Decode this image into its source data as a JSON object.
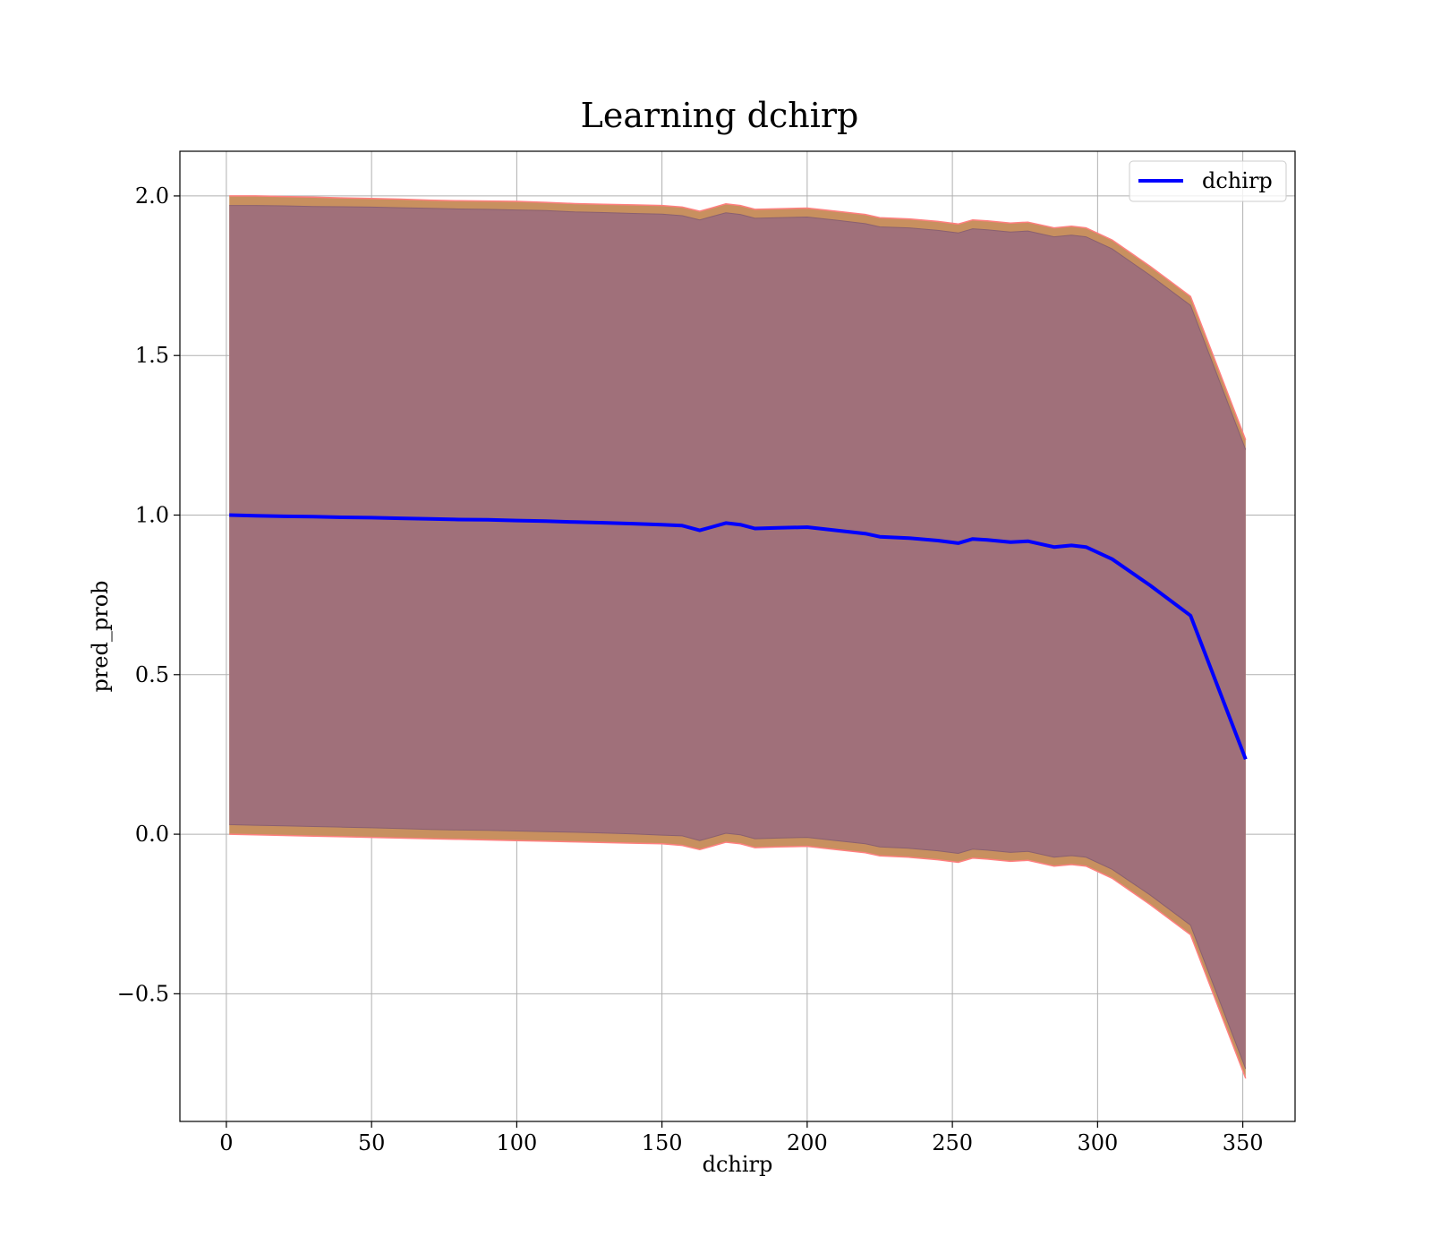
{
  "chart_data": {
    "type": "line",
    "title": "Learning dchirp",
    "xlabel": "dchirp",
    "ylabel": "pred_prob",
    "xlim": [
      -16,
      368
    ],
    "ylim": [
      -0.9,
      2.14
    ],
    "xticks": [
      0,
      50,
      100,
      150,
      200,
      250,
      300,
      350
    ],
    "yticks": [
      -0.5,
      0.0,
      0.5,
      1.0,
      1.5,
      2.0
    ],
    "grid": true,
    "legend_position": "top-right",
    "series": [
      {
        "name": "dchirp",
        "color": "#0000ff",
        "x": [
          1,
          10,
          20,
          30,
          40,
          50,
          60,
          70,
          80,
          90,
          100,
          110,
          120,
          130,
          140,
          150,
          157,
          163,
          167,
          172,
          177,
          182,
          190,
          200,
          210,
          220,
          225,
          235,
          245,
          252,
          257,
          262,
          270,
          276,
          285,
          291,
          296,
          305,
          318,
          332,
          351
        ],
        "y": [
          1.0,
          0.998,
          0.996,
          0.995,
          0.993,
          0.992,
          0.99,
          0.988,
          0.986,
          0.985,
          0.983,
          0.981,
          0.978,
          0.976,
          0.973,
          0.97,
          0.967,
          0.952,
          0.962,
          0.975,
          0.97,
          0.958,
          0.96,
          0.962,
          0.952,
          0.942,
          0.932,
          0.928,
          0.92,
          0.912,
          0.925,
          0.922,
          0.915,
          0.918,
          0.9,
          0.905,
          0.9,
          0.862,
          0.78,
          0.685,
          0.235
        ]
      }
    ],
    "band": {
      "outer_color": "#c8905f",
      "inner_color": "#a0707a",
      "edge_color": "#ff7f7f",
      "upper_outer": [
        2.0,
        2.0,
        1.998,
        1.996,
        1.994,
        1.992,
        1.99,
        1.987,
        1.985,
        1.984,
        1.983,
        1.98,
        1.976,
        1.974,
        1.972,
        1.97,
        1.965,
        1.952,
        1.962,
        1.975,
        1.97,
        1.958,
        1.96,
        1.962,
        1.952,
        1.942,
        1.932,
        1.928,
        1.92,
        1.912,
        1.925,
        1.922,
        1.915,
        1.918,
        1.9,
        1.905,
        1.9,
        1.862,
        1.78,
        1.685,
        1.235
      ],
      "upper_inner": [
        1.97,
        1.97,
        1.969,
        1.967,
        1.966,
        1.965,
        1.963,
        1.961,
        1.959,
        1.958,
        1.956,
        1.954,
        1.95,
        1.948,
        1.945,
        1.943,
        1.938,
        1.925,
        1.935,
        1.947,
        1.942,
        1.93,
        1.932,
        1.934,
        1.924,
        1.913,
        1.903,
        1.9,
        1.892,
        1.884,
        1.897,
        1.894,
        1.887,
        1.89,
        1.872,
        1.877,
        1.872,
        1.834,
        1.752,
        1.657,
        1.205
      ],
      "lower_inner": [
        0.03,
        0.028,
        0.026,
        0.024,
        0.022,
        0.02,
        0.018,
        0.015,
        0.013,
        0.012,
        0.01,
        0.008,
        0.006,
        0.004,
        0.001,
        -0.003,
        -0.005,
        -0.02,
        -0.01,
        0.003,
        -0.002,
        -0.014,
        -0.012,
        -0.01,
        -0.02,
        -0.03,
        -0.04,
        -0.044,
        -0.052,
        -0.06,
        -0.047,
        -0.05,
        -0.057,
        -0.054,
        -0.072,
        -0.067,
        -0.072,
        -0.11,
        -0.19,
        -0.285,
        -0.735
      ],
      "lower_outer": [
        0.0,
        -0.002,
        -0.004,
        -0.006,
        -0.008,
        -0.01,
        -0.012,
        -0.014,
        -0.016,
        -0.018,
        -0.02,
        -0.022,
        -0.024,
        -0.026,
        -0.028,
        -0.03,
        -0.035,
        -0.048,
        -0.038,
        -0.025,
        -0.03,
        -0.042,
        -0.04,
        -0.038,
        -0.048,
        -0.058,
        -0.068,
        -0.072,
        -0.08,
        -0.088,
        -0.075,
        -0.078,
        -0.085,
        -0.082,
        -0.1,
        -0.095,
        -0.1,
        -0.138,
        -0.22,
        -0.315,
        -0.765
      ]
    }
  }
}
